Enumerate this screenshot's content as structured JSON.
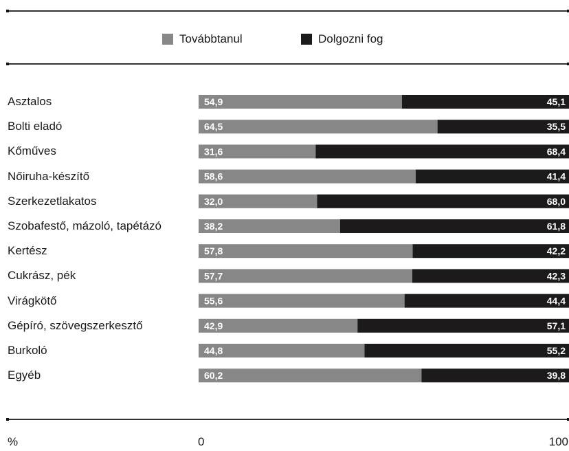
{
  "chart_data": {
    "type": "bar",
    "stacked": true,
    "orientation": "horizontal",
    "title_partial": "",
    "categories": [
      "Asztalos",
      "Bolti eladó",
      "Kőműves",
      "Nőiruha-készítő",
      "Szerkezetlakatos",
      "Szobafestő, mázoló, tapétázó",
      "Kertész",
      "Cukrász, pék",
      "Virágkötő",
      "Gépíró, szövegszerkesztő",
      "Burkoló",
      "Egyéb"
    ],
    "series": [
      {
        "name": "Továbbtanul",
        "color": "#878787",
        "values": [
          54.9,
          64.5,
          31.6,
          58.6,
          32.0,
          38.2,
          57.8,
          57.7,
          55.6,
          42.9,
          44.8,
          60.2
        ],
        "labels": [
          "54,9",
          "64,5",
          "31,6",
          "58,6",
          "32,0",
          "38,2",
          "57,8",
          "57,7",
          "55,6",
          "42,9",
          "44,8",
          "60,2"
        ]
      },
      {
        "name": "Dolgozni fog",
        "color": "#1c1a1b",
        "values": [
          45.1,
          35.5,
          68.4,
          41.4,
          68.0,
          61.8,
          42.2,
          42.3,
          44.4,
          57.1,
          55.2,
          39.8
        ],
        "labels": [
          "45,1",
          "35,5",
          "68,4",
          "41,4",
          "68,0",
          "61,8",
          "42,2",
          "42,3",
          "44,4",
          "57,1",
          "55,2",
          "39,8"
        ]
      }
    ],
    "xlim": [
      0,
      100
    ],
    "axis": {
      "unit_label": "%",
      "min_label": "0",
      "max_label": "100"
    },
    "legend_position": "top-center",
    "grid": false
  }
}
